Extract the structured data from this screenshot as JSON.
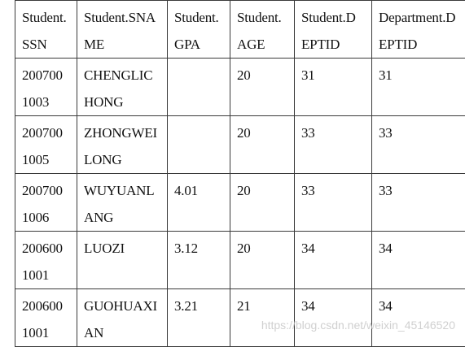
{
  "table": {
    "headers": [
      [
        "Student.",
        "SSN"
      ],
      [
        "Student.SNA",
        "ME"
      ],
      [
        "Student.",
        "GPA"
      ],
      [
        "Student.",
        "AGE"
      ],
      [
        "Student.D",
        "EPTID"
      ],
      [
        "Department.D",
        "EPTID"
      ]
    ],
    "rows": [
      [
        [
          "200700",
          "1003"
        ],
        [
          "CHENGLIC",
          "HONG"
        ],
        [
          ""
        ],
        [
          "20"
        ],
        [
          "31"
        ],
        [
          "31"
        ]
      ],
      [
        [
          "200700",
          "1005"
        ],
        [
          "ZHONGWEI",
          "LONG"
        ],
        [
          ""
        ],
        [
          "20"
        ],
        [
          "33"
        ],
        [
          "33"
        ]
      ],
      [
        [
          "200700",
          "1006"
        ],
        [
          "WUYUANL",
          "ANG"
        ],
        [
          "4.01"
        ],
        [
          "20"
        ],
        [
          "33"
        ],
        [
          "33"
        ]
      ],
      [
        [
          "200600",
          "1001"
        ],
        [
          "LUOZI"
        ],
        [
          "3.12"
        ],
        [
          "20"
        ],
        [
          "34"
        ],
        [
          "34"
        ]
      ],
      [
        [
          "200600",
          "1001"
        ],
        [
          "GUOHUAXI",
          "AN"
        ],
        [
          "3.21"
        ],
        [
          "21"
        ],
        [
          "34"
        ],
        [
          "34"
        ]
      ]
    ]
  },
  "watermark": "https://blog.csdn.net/weixin_45146520"
}
